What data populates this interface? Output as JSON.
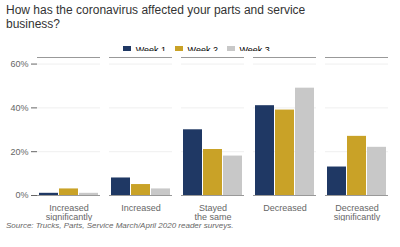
{
  "chart_data": {
    "type": "bar",
    "title": "How has the coronavirus affected your parts and service\nbusiness?",
    "annotations": [
      "Source: Trucks, Parts, Service March/April 2020 reader surveys."
    ],
    "categories": [
      "Increased significantly",
      "Increased",
      "Stayed the same",
      "Decreased",
      "Decreased significantly"
    ],
    "series": [
      {
        "name": "Week 1",
        "color": "#1F3864",
        "values": [
          1,
          8,
          30,
          41,
          13
        ]
      },
      {
        "name": "Week 2",
        "color": "#C9A227",
        "values": [
          3,
          5,
          21,
          39,
          27
        ]
      },
      {
        "name": "Week 3",
        "color": "#C8C8C8",
        "values": [
          1,
          3,
          18,
          49,
          22
        ]
      }
    ],
    "ylim": [
      0,
      63
    ],
    "yticks": [
      {
        "value": 0,
        "label": "0%"
      },
      {
        "value": 20,
        "label": "20%"
      },
      {
        "value": 40,
        "label": "40%"
      },
      {
        "value": 60,
        "label": "60%"
      }
    ],
    "grid": true,
    "legend": "top"
  }
}
